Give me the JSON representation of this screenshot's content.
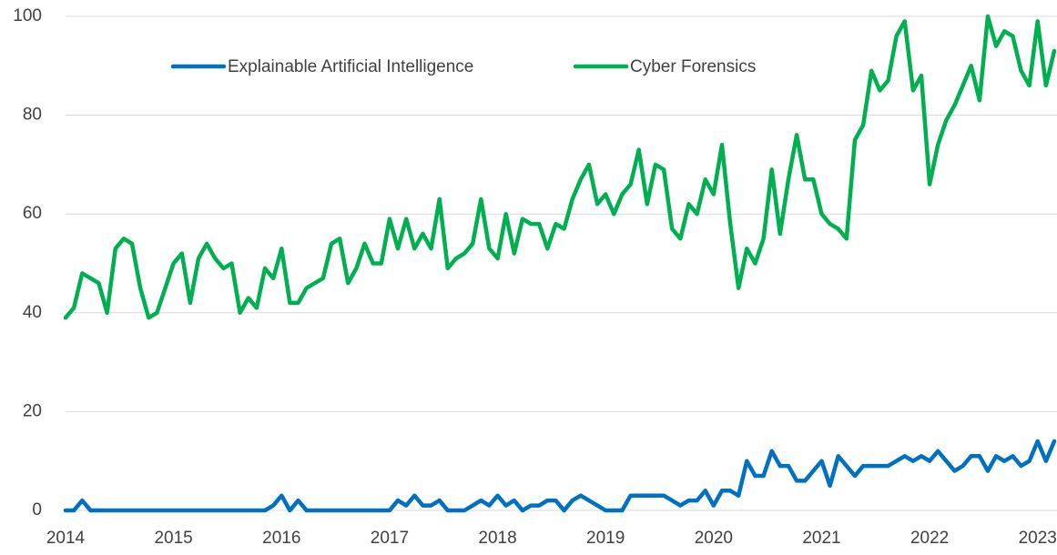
{
  "chart_data": {
    "type": "line",
    "categories": [
      "2014",
      null,
      null,
      null,
      null,
      null,
      null,
      null,
      null,
      null,
      null,
      null,
      null,
      "2015",
      null,
      null,
      null,
      null,
      null,
      null,
      null,
      null,
      null,
      null,
      null,
      null,
      "2016",
      null,
      null,
      null,
      null,
      null,
      null,
      null,
      null,
      null,
      null,
      null,
      null,
      "2017",
      null,
      null,
      null,
      null,
      null,
      null,
      null,
      null,
      null,
      null,
      null,
      null,
      "2018",
      null,
      null,
      null,
      null,
      null,
      null,
      null,
      null,
      null,
      null,
      null,
      null,
      "2019",
      null,
      null,
      null,
      null,
      null,
      null,
      null,
      null,
      null,
      null,
      null,
      null,
      "2020",
      null,
      null,
      null,
      null,
      null,
      null,
      null,
      null,
      null,
      null,
      null,
      null,
      "2021",
      null,
      null,
      null,
      null,
      null,
      null,
      null,
      null,
      null,
      null,
      null,
      null,
      "2022",
      null,
      null,
      null,
      null,
      null,
      null,
      null,
      null,
      null,
      null,
      null,
      null,
      "2023",
      null,
      null
    ],
    "series": [
      {
        "name": "Explainable Artificial Intelligence",
        "color": "#0070c0",
        "values": [
          0,
          0,
          2,
          0,
          0,
          0,
          0,
          0,
          0,
          0,
          0,
          0,
          0,
          0,
          0,
          0,
          0,
          0,
          0,
          0,
          0,
          0,
          0,
          0,
          0,
          1,
          3,
          0,
          2,
          0,
          0,
          0,
          0,
          0,
          0,
          0,
          0,
          0,
          0,
          0,
          2,
          1,
          3,
          1,
          1,
          2,
          0,
          0,
          0,
          1,
          2,
          1,
          3,
          1,
          2,
          0,
          1,
          1,
          2,
          2,
          0,
          2,
          3,
          2,
          1,
          0,
          0,
          0,
          3,
          3,
          3,
          3,
          3,
          2,
          1,
          2,
          2,
          4,
          1,
          4,
          4,
          3,
          10,
          7,
          7,
          12,
          9,
          9,
          6,
          6,
          8,
          10,
          5,
          11,
          9,
          7,
          9,
          9,
          9,
          9,
          10,
          11,
          10,
          11,
          10,
          12,
          10,
          8,
          9,
          11,
          11,
          8,
          11,
          10,
          11,
          9,
          10,
          14,
          10,
          14
        ]
      },
      {
        "name": "Cyber Forensics",
        "color": "#00b050",
        "values": [
          39,
          41,
          48,
          47,
          46,
          40,
          53,
          55,
          54,
          45,
          39,
          40,
          45,
          50,
          52,
          42,
          51,
          54,
          51,
          49,
          50,
          40,
          43,
          41,
          49,
          47,
          53,
          42,
          42,
          45,
          46,
          47,
          54,
          55,
          46,
          49,
          54,
          50,
          50,
          59,
          53,
          59,
          53,
          56,
          53,
          63,
          49,
          51,
          52,
          54,
          63,
          53,
          51,
          60,
          52,
          59,
          58,
          58,
          53,
          58,
          57,
          63,
          67,
          70,
          62,
          64,
          60,
          64,
          66,
          73,
          62,
          70,
          69,
          57,
          55,
          62,
          60,
          67,
          64,
          74,
          58,
          45,
          53,
          50,
          55,
          69,
          56,
          67,
          76,
          67,
          67,
          60,
          58,
          57,
          55,
          75,
          78,
          89,
          85,
          87,
          96,
          99,
          85,
          88,
          66,
          74,
          79,
          82,
          86,
          90,
          83,
          100,
          94,
          97,
          96,
          89,
          86,
          99,
          86,
          93
        ]
      }
    ],
    "ylim": [
      0,
      100
    ],
    "yticks": [
      0,
      20,
      40,
      60,
      80,
      100
    ],
    "grid": true,
    "legend": "top"
  }
}
